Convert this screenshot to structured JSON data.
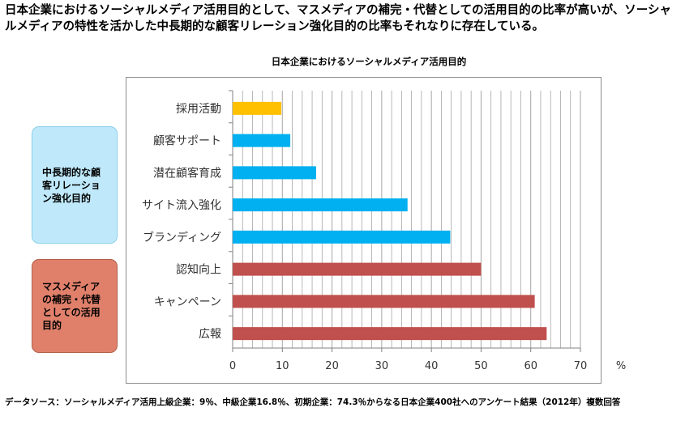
{
  "headline": "日本企業におけるソーシャルメディア活用目的として、マスメディアの補完・代替としての活用目的の比率が高いが、ソーシャルメディアの特性を活かした中長期的な顧客リレーション強化目的の比率もそれなりに存在している。",
  "groups": {
    "mid_term": "中長期的な顧客リレーション強化目的",
    "mass_media": "マスメディアの補完・代替としての活用目的"
  },
  "footnote": "データソース：ソーシャルメディア活用上級企業：9％、中級企業16.8％、初期企業：74.3％からなる日本企業400社へのアンケート結果（2012年）複数回答",
  "colors": {
    "recruit": "#ffc000",
    "relation": "#00b0f0",
    "mass": "#c0504d",
    "grid": "#a6a6a6"
  },
  "chart_data": {
    "type": "bar",
    "orientation": "horizontal",
    "title": "日本企業におけるソーシャルメディア活用目的",
    "xlabel": "",
    "unit_label": "%",
    "xlim": [
      0,
      70
    ],
    "x_ticks": [
      0,
      10,
      20,
      30,
      40,
      50,
      60,
      70
    ],
    "minor_grid_step": 2,
    "grid": true,
    "categories": [
      "採用活動",
      "顧客サポート",
      "潜在顧客育成",
      "サイト流入強化",
      "ブランディング",
      "認知向上",
      "キャンペーン",
      "広報"
    ],
    "values": [
      9.8,
      11.6,
      16.8,
      35.2,
      43.8,
      50.0,
      60.8,
      63.2
    ],
    "bar_colors": [
      "#ffc000",
      "#00b0f0",
      "#00b0f0",
      "#00b0f0",
      "#00b0f0",
      "#c0504d",
      "#c0504d",
      "#c0504d"
    ]
  }
}
